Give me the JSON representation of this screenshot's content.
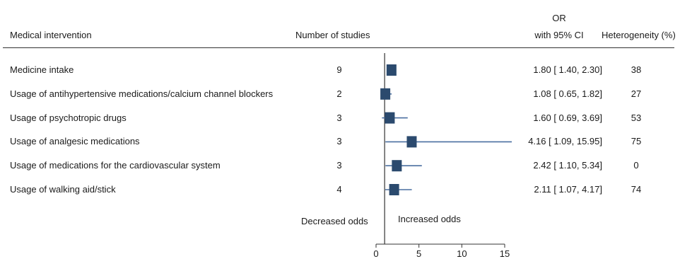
{
  "headers": {
    "intervention": "Medical intervention",
    "studies": "Number of studies",
    "or_line1": "OR",
    "or_line2": "with 95% CI",
    "heterogeneity": "Heterogeneity (%)"
  },
  "direction_labels": {
    "left": "Decreased odds",
    "right": "Increased odds"
  },
  "chart_data": {
    "type": "forest",
    "xlim": [
      0,
      15
    ],
    "reference_line": 1,
    "xticks": [
      "0",
      "5",
      "10",
      "15"
    ],
    "colors": {
      "marker": "#2b4a6e",
      "ci_line": "#4a6fa0",
      "axis": "#333333"
    },
    "rows": [
      {
        "label": "Medicine intake",
        "studies": "9",
        "or": 1.8,
        "ci_low": 1.4,
        "ci_high": 2.3,
        "or_text": "1.80 [  1.40,    2.30]",
        "heterogeneity": "38"
      },
      {
        "label": "Usage of antihypertensive medications/calcium channel blockers",
        "studies": "2",
        "or": 1.08,
        "ci_low": 0.65,
        "ci_high": 1.82,
        "or_text": "1.08 [  0.65,    1.82]",
        "heterogeneity": "27"
      },
      {
        "label": "Usage of psychotropic drugs",
        "studies": "3",
        "or": 1.6,
        "ci_low": 0.69,
        "ci_high": 3.69,
        "or_text": "1.60 [  0.69,    3.69]",
        "heterogeneity": "53"
      },
      {
        "label": "Usage of analgesic medications",
        "studies": "3",
        "or": 4.16,
        "ci_low": 1.09,
        "ci_high": 15.95,
        "or_text": "4.16 [  1.09,  15.95]",
        "heterogeneity": "75"
      },
      {
        "label": "Usage of medications for the cardiovascular system",
        "studies": "3",
        "or": 2.42,
        "ci_low": 1.1,
        "ci_high": 5.34,
        "or_text": "2.42 [  1.10,    5.34]",
        "heterogeneity": "0"
      },
      {
        "label": "Usage of walking aid/stick",
        "studies": "4",
        "or": 2.11,
        "ci_low": 1.07,
        "ci_high": 4.17,
        "or_text": "2.11 [  1.07,    4.17]",
        "heterogeneity": "74"
      }
    ]
  }
}
